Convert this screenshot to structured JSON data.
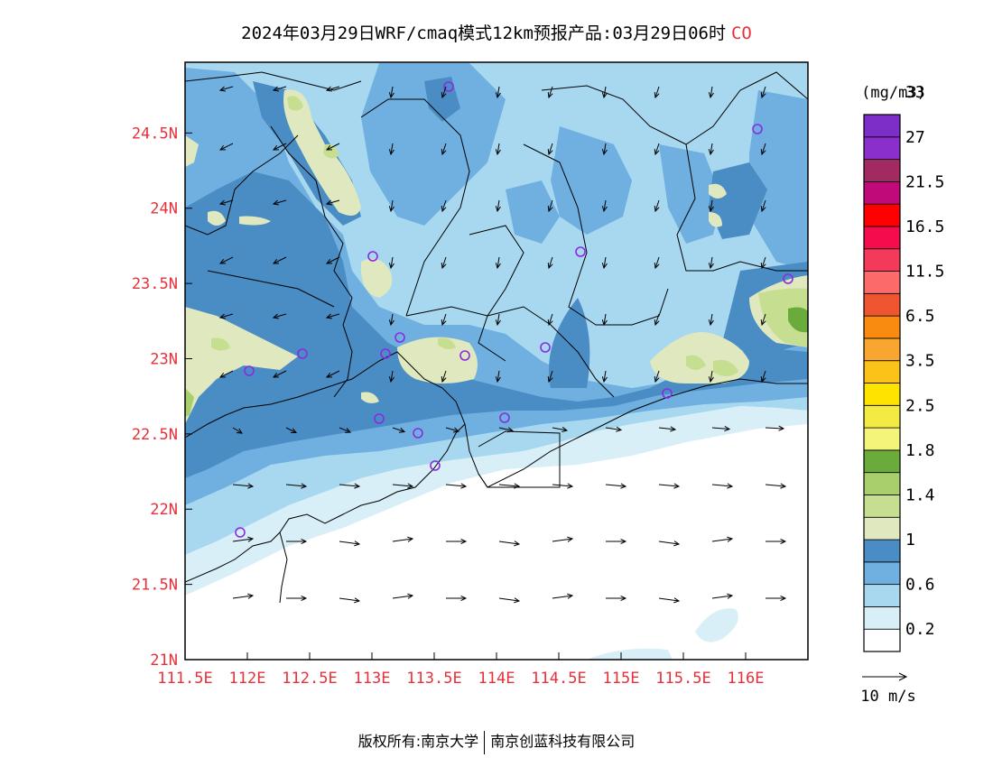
{
  "title": {
    "main": "2024年03月29日WRF/cmaq模式12km预报产品:03月29日06时",
    "species": "CO"
  },
  "map": {
    "lat_ticks": [
      "21N",
      "21.5N",
      "22N",
      "22.5N",
      "23N",
      "23.5N",
      "24N",
      "24.5N"
    ],
    "lon_ticks": [
      "111.5E",
      "112E",
      "112.5E",
      "113E",
      "113.5E",
      "114E",
      "114.5E",
      "115E",
      "115.5E",
      "116E"
    ],
    "lat_values": [
      21.0,
      21.5,
      22.0,
      22.5,
      23.0,
      23.5,
      24.0,
      24.5
    ],
    "lon_values": [
      111.5,
      112.0,
      112.5,
      113.0,
      113.5,
      114.0,
      114.5,
      115.0,
      115.5,
      116.0
    ],
    "lon_range": [
      111.5,
      116.5
    ],
    "lat_range": [
      21.0,
      24.97
    ],
    "tick_label_color": "#e8303a",
    "station_color": "#8a2be2"
  },
  "colorbar": {
    "unit": "(mg/m3)",
    "labels": [
      "0.2",
      "0.6",
      "1",
      "1.4",
      "1.8",
      "2.5",
      "3.5",
      "6.5",
      "11.5",
      "16.5",
      "21.5",
      "27",
      "33"
    ],
    "colors": [
      "#ffffff",
      "#d8eff8",
      "#a8d8f0",
      "#6fb0e0",
      "#4a8cc4",
      "#dfe8bf",
      "#c6de8f",
      "#a8cf6b",
      "#6aab3c",
      "#f4f37a",
      "#f3ea44",
      "#fde300",
      "#fbc21a",
      "#f9a630",
      "#f98c10",
      "#ef5530",
      "#fd6a6a",
      "#f33a5a",
      "#f40c4c",
      "#ff0000",
      "#c00a7a",
      "#a12b61",
      "#8a2fcb",
      "#7d2ec9"
    ]
  },
  "wind_legend": {
    "label": "10 m/s"
  },
  "footer": {
    "left": "版权所有:南京大学",
    "right": "南京创蓝科技有限公司"
  }
}
